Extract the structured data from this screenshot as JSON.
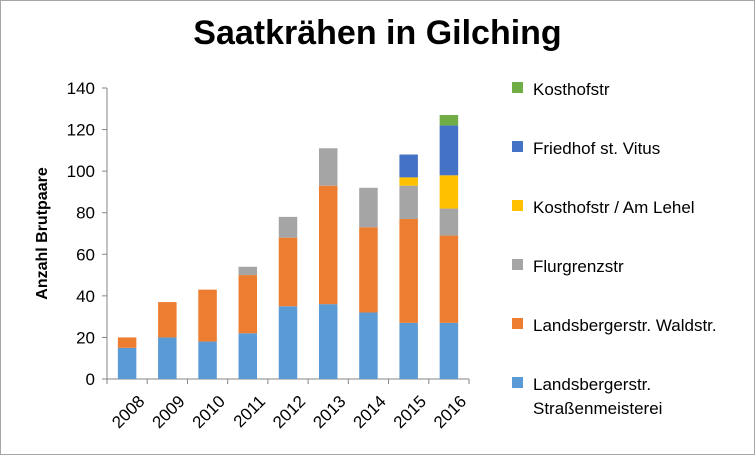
{
  "chart_data": {
    "type": "bar",
    "stacked": true,
    "title": "Saatkrähen in Gilching",
    "ylabel": "Anzahl Brutpaare",
    "xlabel": "",
    "ylim": [
      0,
      140
    ],
    "yticks": [
      0,
      20,
      40,
      60,
      80,
      100,
      120,
      140
    ],
    "grid": false,
    "legend_position": "right",
    "categories": [
      "2008",
      "2009",
      "2010",
      "2011",
      "2012",
      "2013",
      "2014",
      "2015",
      "2016"
    ],
    "series": [
      {
        "name": "Landsbergerstr. Straßenmeisterei",
        "color": "#5b9bd5",
        "values": [
          15,
          20,
          18,
          22,
          35,
          36,
          32,
          27,
          27
        ]
      },
      {
        "name": "Landsbergerstr. Waldstr.",
        "color": "#ed7d31",
        "values": [
          5,
          17,
          25,
          28,
          33,
          57,
          41,
          50,
          42
        ]
      },
      {
        "name": "Flurgrenzstr",
        "color": "#a5a5a5",
        "values": [
          0,
          0,
          0,
          4,
          10,
          18,
          19,
          16,
          13
        ]
      },
      {
        "name": "Kosthofstr / Am Lehel",
        "color": "#ffc000",
        "values": [
          0,
          0,
          0,
          0,
          0,
          0,
          0,
          4,
          16
        ]
      },
      {
        "name": "Friedhof st. Vitus",
        "color": "#4472c4",
        "values": [
          0,
          0,
          0,
          0,
          0,
          0,
          0,
          11,
          24
        ]
      },
      {
        "name": "Kosthofstr",
        "color": "#70ad47",
        "values": [
          0,
          0,
          0,
          0,
          0,
          0,
          0,
          0,
          5
        ]
      }
    ]
  }
}
